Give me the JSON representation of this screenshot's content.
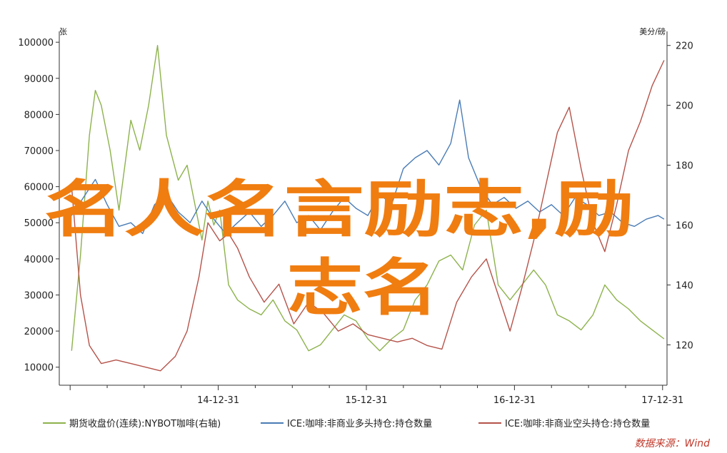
{
  "chart_data": {
    "type": "line",
    "left_axis": {
      "unit": "张",
      "ticks": [
        10000,
        20000,
        30000,
        40000,
        50000,
        60000,
        70000,
        80000,
        90000,
        100000
      ],
      "range": [
        5000,
        103000
      ]
    },
    "right_axis": {
      "unit": "美分/磅",
      "ticks": [
        120,
        140,
        160,
        180,
        200,
        220
      ],
      "range": [
        106.5,
        224.7
      ]
    },
    "x_axis": {
      "labels": [
        "14-12-31",
        "15-12-31",
        "16-12-31",
        "17-12-31"
      ],
      "range": [
        "2013-12",
        "2018-01"
      ]
    },
    "grid": false,
    "legend_position": "bottom",
    "series": [
      {
        "name": "期货收盘价(连续):NYBOT咖啡(右轴)",
        "axis": "right",
        "color": "#8db24c",
        "x": [
          2014.0,
          2014.06,
          2014.12,
          2014.16,
          2014.2,
          2014.26,
          2014.32,
          2014.4,
          2014.46,
          2014.52,
          2014.58,
          2014.64,
          2014.72,
          2014.78,
          2014.84,
          2014.88,
          2014.92,
          2014.96,
          2015.0,
          2015.06,
          2015.12,
          2015.2,
          2015.28,
          2015.36,
          2015.44,
          2015.52,
          2015.6,
          2015.68,
          2015.76,
          2015.84,
          2015.92,
          2016.0,
          2016.08,
          2016.16,
          2016.24,
          2016.32,
          2016.4,
          2016.48,
          2016.56,
          2016.64,
          2016.72,
          2016.8,
          2016.88,
          2016.96,
          2017.04,
          2017.12,
          2017.2,
          2017.28,
          2017.36,
          2017.44,
          2017.52,
          2017.6,
          2017.68,
          2017.76,
          2017.84,
          2017.92,
          2018.0
        ],
        "y": [
          118,
          150,
          190,
          205,
          200,
          185,
          165,
          195,
          185,
          200,
          220,
          190,
          175,
          180,
          165,
          155,
          168,
          160,
          165,
          140,
          135,
          132,
          130,
          135,
          128,
          125,
          118,
          120,
          125,
          130,
          128,
          122,
          118,
          122,
          125,
          135,
          140,
          148,
          150,
          145,
          160,
          165,
          140,
          135,
          140,
          145,
          140,
          130,
          128,
          125,
          130,
          140,
          135,
          132,
          128,
          125,
          122
        ]
      },
      {
        "name": "ICE:咖啡:非商业多头持仓:持仓数量",
        "axis": "left",
        "color": "#4a7cb5",
        "x": [
          2014.0,
          2014.08,
          2014.16,
          2014.24,
          2014.32,
          2014.4,
          2014.48,
          2014.56,
          2014.64,
          2014.72,
          2014.8,
          2014.88,
          2014.96,
          2015.04,
          2015.12,
          2015.2,
          2015.28,
          2015.36,
          2015.44,
          2015.52,
          2015.6,
          2015.68,
          2015.76,
          2015.84,
          2015.92,
          2016.0,
          2016.08,
          2016.16,
          2016.24,
          2016.32,
          2016.4,
          2016.48,
          2016.56,
          2016.62,
          2016.68,
          2016.76,
          2016.84,
          2016.92,
          2017.0,
          2017.08,
          2017.16,
          2017.24,
          2017.32,
          2017.4,
          2017.48,
          2017.56,
          2017.64,
          2017.72,
          2017.8,
          2017.88,
          2017.96,
          2018.0
        ],
        "y": [
          52000,
          57000,
          62000,
          55000,
          49000,
          50000,
          47000,
          55000,
          58000,
          53000,
          50000,
          56000,
          51000,
          47000,
          50000,
          53000,
          49000,
          52000,
          56000,
          50000,
          52000,
          48000,
          53000,
          57000,
          54000,
          52000,
          58000,
          55000,
          65000,
          68000,
          70000,
          66000,
          72000,
          84000,
          68000,
          60000,
          55000,
          57000,
          54000,
          56000,
          53000,
          55000,
          52000,
          57000,
          55000,
          52000,
          53000,
          50000,
          49000,
          51000,
          52000,
          51000
        ]
      },
      {
        "name": "ICE:咖啡:非商业空头持仓:持仓数量",
        "axis": "left",
        "color": "#b5534a",
        "x": [
          2014.0,
          2014.06,
          2014.12,
          2014.2,
          2014.3,
          2014.4,
          2014.5,
          2014.6,
          2014.7,
          2014.78,
          2014.86,
          2014.92,
          2015.0,
          2015.06,
          2015.12,
          2015.2,
          2015.3,
          2015.4,
          2015.5,
          2015.6,
          2015.7,
          2015.8,
          2015.9,
          2016.0,
          2016.1,
          2016.2,
          2016.3,
          2016.4,
          2016.5,
          2016.6,
          2016.7,
          2016.8,
          2016.88,
          2016.96,
          2017.04,
          2017.12,
          2017.2,
          2017.28,
          2017.36,
          2017.44,
          2017.52,
          2017.6,
          2017.68,
          2017.76,
          2017.84,
          2017.92,
          2018.0
        ],
        "y": [
          60000,
          30000,
          16000,
          11000,
          12000,
          11000,
          10000,
          9000,
          13000,
          20000,
          35000,
          50000,
          45000,
          47000,
          43000,
          35000,
          28000,
          33000,
          22000,
          28000,
          25000,
          20000,
          22000,
          19000,
          18000,
          17000,
          18000,
          16000,
          15000,
          28000,
          35000,
          40000,
          30000,
          20000,
          32000,
          45000,
          60000,
          75000,
          82000,
          65000,
          50000,
          42000,
          55000,
          70000,
          78000,
          88000,
          95000
        ]
      }
    ],
    "watermark": "名人名言励志,励志名",
    "source": "数据来源：Wind"
  }
}
